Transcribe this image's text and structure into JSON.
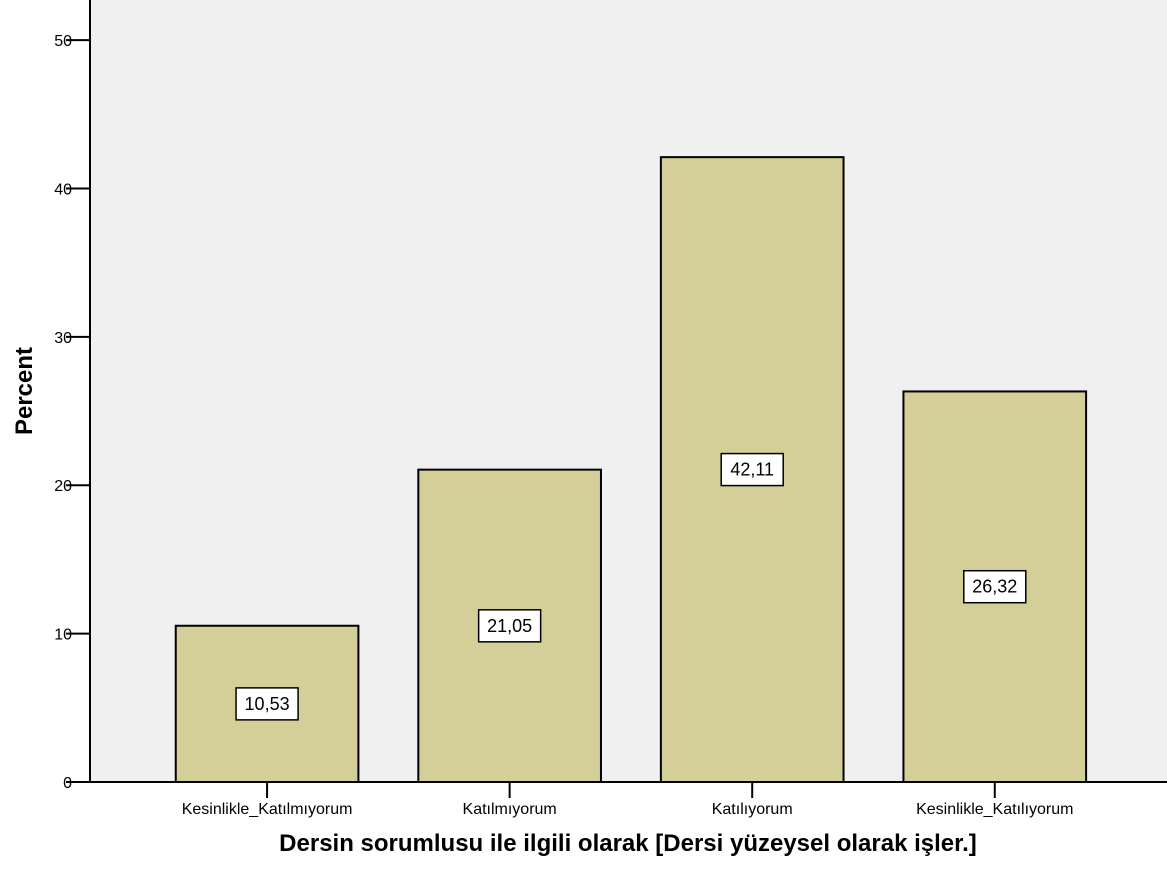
{
  "chart_data": {
    "type": "bar",
    "categories": [
      "Kesinlikle_Katılmıyorum",
      "Katılmıyorum",
      "Katılıyorum",
      "Kesinlikle_Katılıyorum"
    ],
    "values": [
      10.53,
      21.05,
      42.11,
      26.32
    ],
    "data_labels": [
      "10,53",
      "21,05",
      "42,11",
      "26,32"
    ],
    "xlabel": "Dersin sorumlusu ile ilgili olarak  [Dersi yüzeysel olarak işler.]",
    "ylabel": "Percent",
    "ylim": [
      0,
      52.7
    ],
    "yticks": [
      0,
      10,
      20,
      30,
      40,
      50
    ],
    "ytick_labels": [
      "0",
      "10",
      "20",
      "30",
      "40",
      "50"
    ],
    "grid": false,
    "legend": "none",
    "colors": {
      "bar_fill": "#d4cf98",
      "bar_stroke": "#000000",
      "plot_background": "#f0f0f0",
      "label_background": "#ffffff"
    }
  }
}
